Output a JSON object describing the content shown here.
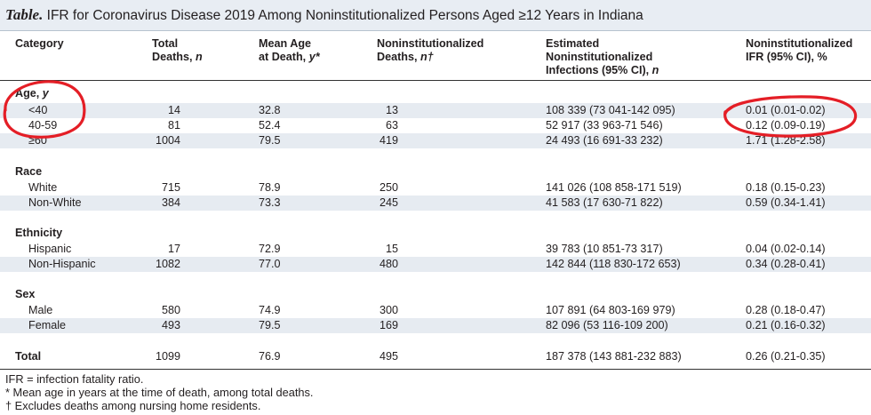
{
  "title": {
    "label": "Table.",
    "text": "IFR for Coronavirus Disease 2019 Among Noninstitutionalized Persons Aged ≥12 Years in Indiana"
  },
  "headers": {
    "category": "Category",
    "total_deaths_1": "Total",
    "total_deaths_2": "Deaths, ",
    "total_deaths_unit": "n",
    "mean_age_1": "Mean Age",
    "mean_age_2": "at Death, ",
    "mean_age_unit": "y*",
    "nonins_deaths_1": "Noninstitutionalized",
    "nonins_deaths_2": "Deaths, ",
    "nonins_deaths_unit": "n†",
    "est_1": "Estimated",
    "est_2": "Noninstitutionalized",
    "est_3": "Infections (95% CI), ",
    "est_unit": "n",
    "ifr_1": "Noninstitutionalized",
    "ifr_2": "IFR (95% CI), %"
  },
  "groups": {
    "age_label": "Age, ",
    "age_unit": "y",
    "race": "Race",
    "ethnicity": "Ethnicity",
    "sex": "Sex"
  },
  "rows": {
    "age_lt40": [
      "<40",
      "14",
      "32.8",
      "13",
      "108 339 (73 041-142 095)",
      "0.01 (0.01-0.02)"
    ],
    "age_40_59": [
      "40-59",
      "81",
      "52.4",
      "63",
      "52 917 (33 963-71 546)",
      "0.12 (0.09-0.19)"
    ],
    "age_ge60": [
      "≥60",
      "1004",
      "79.5",
      "419",
      "24 493 (16 691-33 232)",
      "1.71 (1.28-2.58)"
    ],
    "white": [
      "White",
      "715",
      "78.9",
      "250",
      "141 026 (108 858-171 519)",
      "0.18 (0.15-0.23)"
    ],
    "nonwhite": [
      "Non-White",
      "384",
      "73.3",
      "245",
      "41 583 (17 630-71 822)",
      "0.59 (0.34-1.41)"
    ],
    "hispanic": [
      "Hispanic",
      "17",
      "72.9",
      "15",
      "39 783 (10 851-73 317)",
      "0.04 (0.02-0.14)"
    ],
    "nonhispanic": [
      "Non-Hispanic",
      "1082",
      "77.0",
      "480",
      "142 844 (118 830-172 653)",
      "0.34 (0.28-0.41)"
    ],
    "male": [
      "Male",
      "580",
      "74.9",
      "300",
      "107 891 (64 803-169 979)",
      "0.28 (0.18-0.47)"
    ],
    "female": [
      "Female",
      "493",
      "79.5",
      "169",
      "82 096 (53 116-109 200)",
      "0.21 (0.16-0.32)"
    ],
    "total": [
      "Total",
      "1099",
      "76.9",
      "495",
      "187 378 (143 881-232 883)",
      "0.26 (0.21-0.35)"
    ]
  },
  "footnotes": [
    "IFR = infection fatality ratio.",
    "* Mean age in years at the time of death, among total deaths.",
    "† Excludes deaths among nursing home residents."
  ],
  "colors": {
    "title_bg": "#e8edf3",
    "shade_bg": "#e6ebf1",
    "annotation_red": "#e41e26"
  }
}
